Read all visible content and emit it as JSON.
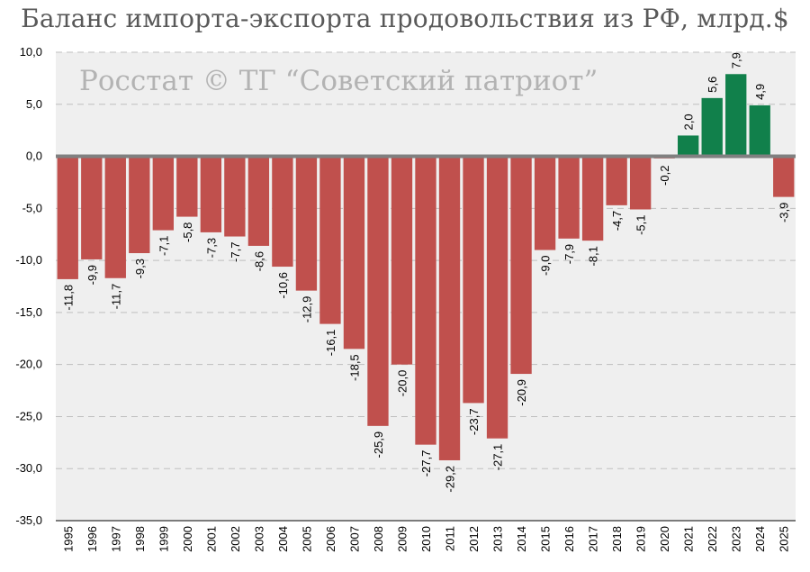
{
  "chart_data": {
    "type": "bar",
    "title": "Баланс импорта-экспорта продовольствия из РФ, млрд.$",
    "watermark": "Росстат © ТГ “Советский патриот”",
    "xlabel": "",
    "ylabel": "",
    "ylim": [
      -35,
      10
    ],
    "yticks": [
      10,
      5,
      0,
      -5,
      -10,
      -15,
      -20,
      -25,
      -30,
      -35
    ],
    "ytick_labels": [
      "10,0",
      "5,0",
      "0,0",
      "-5,0",
      "-10,0",
      "-15,0",
      "-20,0",
      "-25,0",
      "-30,0",
      "-35,0"
    ],
    "grid": true,
    "legend": "none",
    "colors": {
      "negative": "#c0504d",
      "positive": "#11804b",
      "zero_line": "#808080",
      "grid": "#bfbfbf",
      "plot_bg": "#efefef"
    },
    "categories": [
      "1995",
      "1996",
      "1997",
      "1998",
      "1999",
      "2000",
      "2001",
      "2002",
      "2003",
      "2004",
      "2005",
      "2006",
      "2007",
      "2008",
      "2009",
      "2010",
      "2011",
      "2012",
      "2013",
      "2014",
      "2015",
      "2016",
      "2017",
      "2018",
      "2019",
      "2020",
      "2021",
      "2022",
      "2023",
      "2024",
      "2025"
    ],
    "values": [
      -11.8,
      -9.9,
      -11.7,
      -9.3,
      -7.1,
      -5.8,
      -7.3,
      -7.7,
      -8.6,
      -10.6,
      -12.9,
      -16.1,
      -18.5,
      -25.9,
      -20.0,
      -27.7,
      -29.2,
      -23.7,
      -27.1,
      -20.9,
      -9.0,
      -7.9,
      -8.1,
      -4.7,
      -5.1,
      -0.2,
      2.0,
      5.6,
      7.9,
      4.9,
      -3.9
    ],
    "value_labels": [
      "-11,8",
      "-9,9",
      "-11,7",
      "-9,3",
      "-7,1",
      "-5,8",
      "-7,3",
      "-7,7",
      "-8,6",
      "-10,6",
      "-12,9",
      "-16,1",
      "-18,5",
      "-25,9",
      "-20,0",
      "-27,7",
      "-29,2",
      "-23,7",
      "-27,1",
      "-20,9",
      "-9,0",
      "-7,9",
      "-8,1",
      "-4,7",
      "-5,1",
      "-0,2",
      "2,0",
      "5,6",
      "7,9",
      "4,9",
      "-3,9"
    ]
  }
}
